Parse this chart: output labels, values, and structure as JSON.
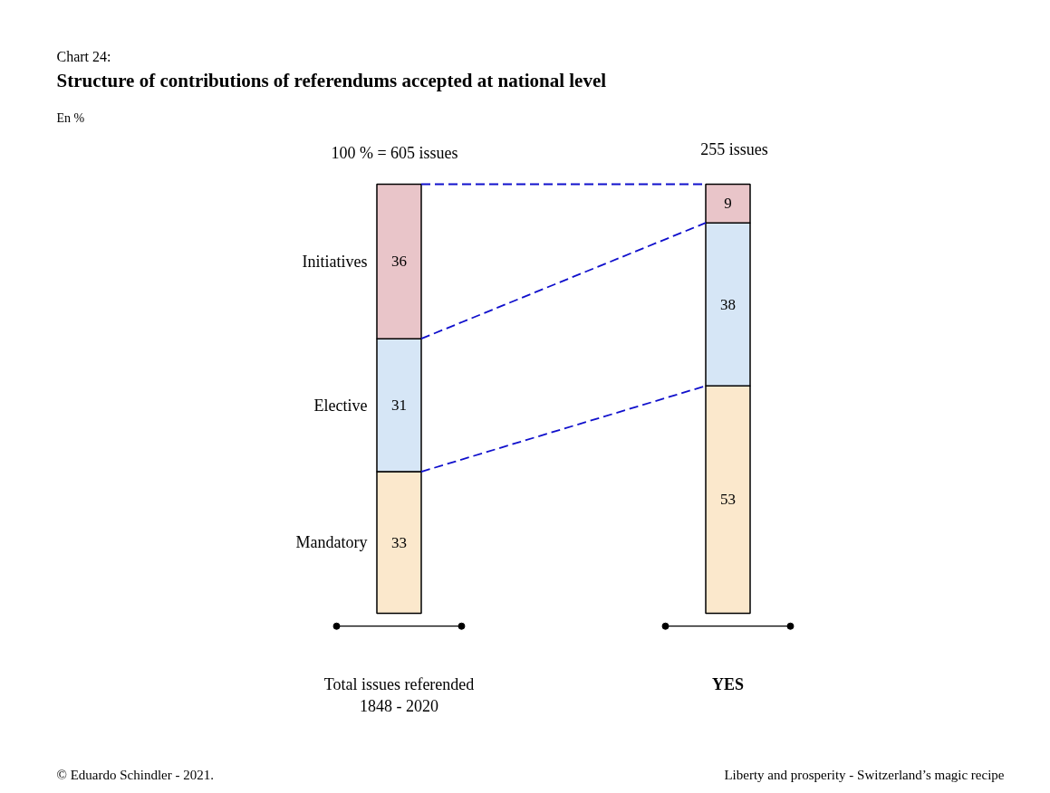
{
  "chart_data": {
    "type": "bar",
    "stacked": true,
    "data_labels": true,
    "title": "Structure of contributions of referendums accepted at national level",
    "subtitle": "Chart 24:",
    "categories": [
      "Total issues referended\n1848 - 2020",
      "YES"
    ],
    "series": [
      {
        "name": "Mandatory",
        "color": "#fbe8cc",
        "values": [
          33,
          53
        ]
      },
      {
        "name": "Elective",
        "color": "#d6e6f6",
        "values": [
          31,
          38
        ]
      },
      {
        "name": "Initiatives",
        "color": "#e9c5c9",
        "values": [
          36,
          9
        ]
      }
    ],
    "annotations": [
      "En %",
      "100 % = 605 issues",
      "255 issues",
      "© Eduardo Schindler - 2021.",
      "Liberty and prosperity - Switzerland’s magic recipe"
    ]
  }
}
